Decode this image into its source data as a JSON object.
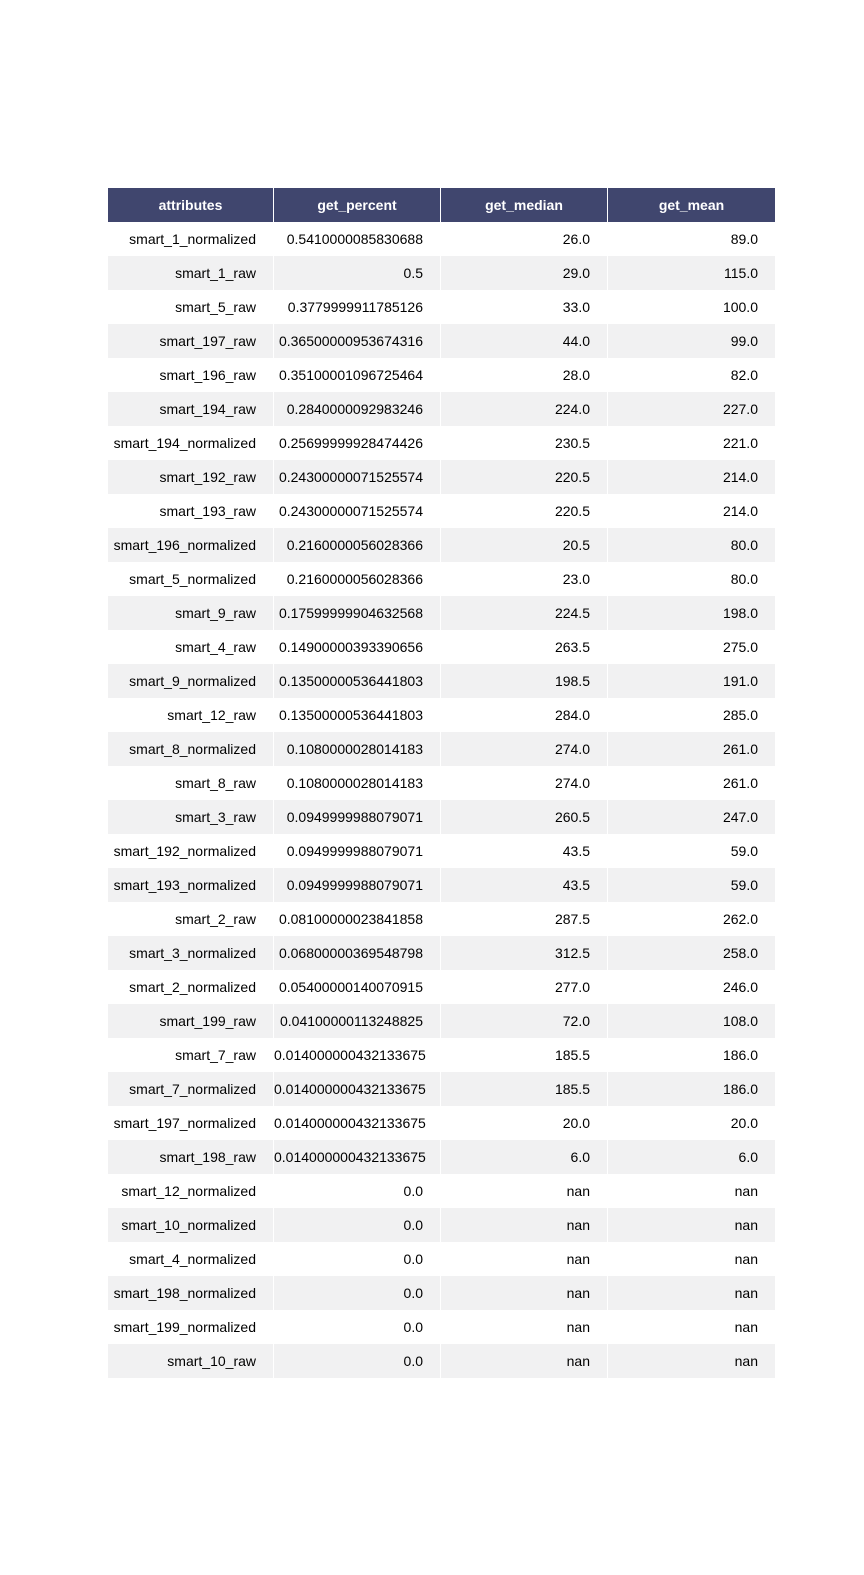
{
  "chart_data": {
    "type": "table",
    "columns": [
      "attributes",
      "get_percent",
      "get_median",
      "get_mean"
    ],
    "rows": [
      [
        "smart_1_normalized",
        "0.5410000085830688",
        "26.0",
        "89.0"
      ],
      [
        "smart_1_raw",
        "0.5",
        "29.0",
        "115.0"
      ],
      [
        "smart_5_raw",
        "0.3779999911785126",
        "33.0",
        "100.0"
      ],
      [
        "smart_197_raw",
        "0.36500000953674316",
        "44.0",
        "99.0"
      ],
      [
        "smart_196_raw",
        "0.35100001096725464",
        "28.0",
        "82.0"
      ],
      [
        "smart_194_raw",
        "0.2840000092983246",
        "224.0",
        "227.0"
      ],
      [
        "smart_194_normalized",
        "0.25699999928474426",
        "230.5",
        "221.0"
      ],
      [
        "smart_192_raw",
        "0.24300000071525574",
        "220.5",
        "214.0"
      ],
      [
        "smart_193_raw",
        "0.24300000071525574",
        "220.5",
        "214.0"
      ],
      [
        "smart_196_normalized",
        "0.2160000056028366",
        "20.5",
        "80.0"
      ],
      [
        "smart_5_normalized",
        "0.2160000056028366",
        "23.0",
        "80.0"
      ],
      [
        "smart_9_raw",
        "0.17599999904632568",
        "224.5",
        "198.0"
      ],
      [
        "smart_4_raw",
        "0.14900000393390656",
        "263.5",
        "275.0"
      ],
      [
        "smart_9_normalized",
        "0.13500000536441803",
        "198.5",
        "191.0"
      ],
      [
        "smart_12_raw",
        "0.13500000536441803",
        "284.0",
        "285.0"
      ],
      [
        "smart_8_normalized",
        "0.1080000028014183",
        "274.0",
        "261.0"
      ],
      [
        "smart_8_raw",
        "0.1080000028014183",
        "274.0",
        "261.0"
      ],
      [
        "smart_3_raw",
        "0.0949999988079071",
        "260.5",
        "247.0"
      ],
      [
        "smart_192_normalized",
        "0.0949999988079071",
        "43.5",
        "59.0"
      ],
      [
        "smart_193_normalized",
        "0.0949999988079071",
        "43.5",
        "59.0"
      ],
      [
        "smart_2_raw",
        "0.08100000023841858",
        "287.5",
        "262.0"
      ],
      [
        "smart_3_normalized",
        "0.06800000369548798",
        "312.5",
        "258.0"
      ],
      [
        "smart_2_normalized",
        "0.05400000140070915",
        "277.0",
        "246.0"
      ],
      [
        "smart_199_raw",
        "0.04100000113248825",
        "72.0",
        "108.0"
      ],
      [
        "smart_7_raw",
        "0.014000000432133675",
        "185.5",
        "186.0"
      ],
      [
        "smart_7_normalized",
        "0.014000000432133675",
        "185.5",
        "186.0"
      ],
      [
        "smart_197_normalized",
        "0.014000000432133675",
        "20.0",
        "20.0"
      ],
      [
        "smart_198_raw",
        "0.014000000432133675",
        "6.0",
        "6.0"
      ],
      [
        "smart_12_normalized",
        "0.0",
        "nan",
        "nan"
      ],
      [
        "smart_10_normalized",
        "0.0",
        "nan",
        "nan"
      ],
      [
        "smart_4_normalized",
        "0.0",
        "nan",
        "nan"
      ],
      [
        "smart_198_normalized",
        "0.0",
        "nan",
        "nan"
      ],
      [
        "smart_199_normalized",
        "0.0",
        "nan",
        "nan"
      ],
      [
        "smart_10_raw",
        "0.0",
        "nan",
        "nan"
      ]
    ],
    "header_color": "#40466e",
    "header_text_color": "#ffffff",
    "stripe_color": "#f1f1f2",
    "row_color": "#ffffff"
  }
}
